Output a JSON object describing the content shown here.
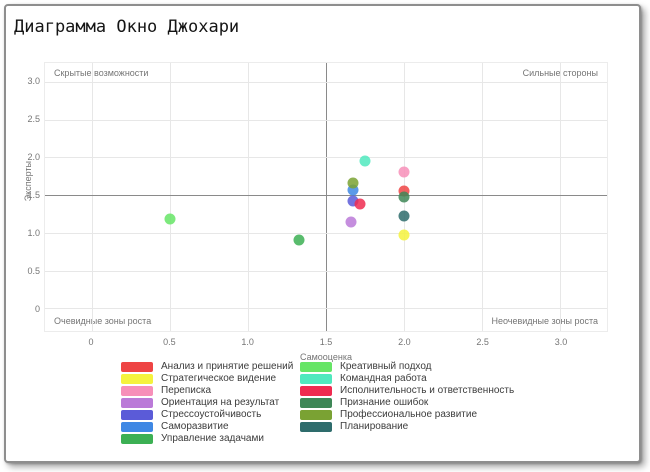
{
  "window_title": "Диаграмма Окно Джохари",
  "chart_data": {
    "type": "scatter",
    "title": "Диаграмма Окно Джохари",
    "xlabel": "Самооценка",
    "ylabel": "Эксперты",
    "xlim": [
      -0.3,
      3.3
    ],
    "ylim": [
      -0.3,
      3.25
    ],
    "grid": true,
    "legend_position": "bottom",
    "quadrant_divider": 1.5,
    "quadrant_labels": {
      "top_left": "Скрытые возможности",
      "top_right": "Сильные стороны",
      "bottom_left": "Очевидные зоны роста",
      "bottom_right": "Неочевидные зоны роста"
    },
    "xticks": [
      {
        "v": 0,
        "label": "0"
      },
      {
        "v": 0.5,
        "label": "0.5"
      },
      {
        "v": 1.0,
        "label": "1.0"
      },
      {
        "v": 1.5,
        "label": "1.5"
      },
      {
        "v": 2.0,
        "label": "2.0"
      },
      {
        "v": 2.5,
        "label": "2.5"
      },
      {
        "v": 3.0,
        "label": "3.0"
      }
    ],
    "yticks": [
      {
        "v": 0,
        "label": "0"
      },
      {
        "v": 0.5,
        "label": "0.5"
      },
      {
        "v": 1.0,
        "label": "1.0"
      },
      {
        "v": 1.5,
        "label": "1.5"
      },
      {
        "v": 2.0,
        "label": "2.0"
      },
      {
        "v": 2.5,
        "label": "2.5"
      },
      {
        "v": 3.0,
        "label": "3.0"
      }
    ],
    "series": [
      {
        "name": "Анализ и принятие решений",
        "color": "#ee4444",
        "x": 2.0,
        "y": 1.55
      },
      {
        "name": "Стратегическое видение",
        "color": "#f5f23d",
        "x": 2.0,
        "y": 0.97
      },
      {
        "name": "Переписка",
        "color": "#f78fb9",
        "x": 2.0,
        "y": 1.8
      },
      {
        "name": "Ориентация на результат",
        "color": "#bb7ad8",
        "x": 1.66,
        "y": 1.15
      },
      {
        "name": "Стрессоустойчивость",
        "color": "#5b5bd8",
        "x": 1.67,
        "y": 1.42
      },
      {
        "name": "Саморазвитие",
        "color": "#3f88e4",
        "x": 1.67,
        "y": 1.57
      },
      {
        "name": "Управление задачами",
        "color": "#3cb054",
        "x": 1.33,
        "y": 0.9
      },
      {
        "name": "Креативный подход",
        "color": "#66e566",
        "x": 0.5,
        "y": 1.18
      },
      {
        "name": "Командная работа",
        "color": "#50e9be",
        "x": 1.75,
        "y": 1.95
      },
      {
        "name": "Исполнительность и ответственность",
        "color": "#ef2b50",
        "x": 1.72,
        "y": 1.38
      },
      {
        "name": "Признание ошибок",
        "color": "#3e8757",
        "x": 2.0,
        "y": 1.48
      },
      {
        "name": "Профессиональное развитие",
        "color": "#7aa233",
        "x": 1.67,
        "y": 1.66
      },
      {
        "name": "Планирование",
        "color": "#2e6c6c",
        "x": 2.0,
        "y": 1.22
      }
    ],
    "legend_column_split": 7
  }
}
